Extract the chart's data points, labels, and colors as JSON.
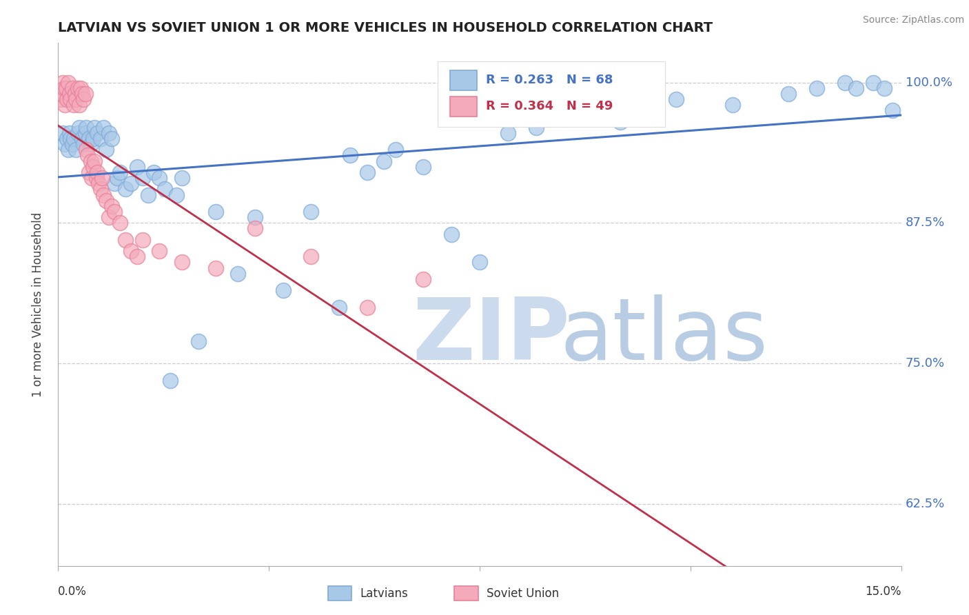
{
  "title": "LATVIAN VS SOVIET UNION 1 OR MORE VEHICLES IN HOUSEHOLD CORRELATION CHART",
  "source": "Source: ZipAtlas.com",
  "ylabel": "1 or more Vehicles in Household",
  "yticks": [
    62.5,
    75.0,
    87.5,
    100.0
  ],
  "ytick_labels": [
    "62.5%",
    "75.0%",
    "87.5%",
    "100.0%"
  ],
  "xmin": 0.0,
  "xmax": 15.0,
  "ymin": 57.0,
  "ymax": 103.5,
  "legend_latvians": "Latvians",
  "legend_soviet": "Soviet Union",
  "R_latvians": "R = 0.263",
  "N_latvians": "N = 68",
  "R_soviet": "R = 0.364",
  "N_soviet": "N = 49",
  "latvians_color": "#a8c8e8",
  "soviet_color": "#f4aabb",
  "latvians_edge": "#80aad8",
  "soviet_edge": "#e8809a",
  "trend_latvians_color": "#4472c4",
  "trend_soviet_color": "#c0304a",
  "watermark_zip_color": "#ccdaee",
  "watermark_atlas_color": "#b8cce4",
  "ytick_color": "#4472c4",
  "latvians_x": [
    0.08,
    0.12,
    0.15,
    0.18,
    0.2,
    0.22,
    0.25,
    0.28,
    0.32,
    0.35,
    0.38,
    0.42,
    0.45,
    0.48,
    0.5,
    0.55,
    0.58,
    0.62,
    0.65,
    0.7,
    0.75,
    0.8,
    0.85,
    0.9,
    0.95,
    1.0,
    1.05,
    1.1,
    1.2,
    1.3,
    1.4,
    1.5,
    1.6,
    1.7,
    1.8,
    1.9,
    2.0,
    2.1,
    2.2,
    2.5,
    2.8,
    3.2,
    3.5,
    4.0,
    4.5,
    5.0,
    5.2,
    5.5,
    5.8,
    6.0,
    6.5,
    7.0,
    7.5,
    8.0,
    8.5,
    9.0,
    9.5,
    10.0,
    10.5,
    11.0,
    12.0,
    13.0,
    13.5,
    14.0,
    14.2,
    14.5,
    14.7,
    14.85
  ],
  "latvians_y": [
    95.5,
    94.5,
    95.0,
    94.0,
    95.5,
    95.0,
    94.5,
    95.0,
    94.0,
    95.5,
    96.0,
    95.0,
    94.5,
    95.5,
    96.0,
    95.0,
    94.5,
    95.0,
    96.0,
    95.5,
    95.0,
    96.0,
    94.0,
    95.5,
    95.0,
    91.0,
    91.5,
    92.0,
    90.5,
    91.0,
    92.5,
    91.5,
    90.0,
    92.0,
    91.5,
    90.5,
    73.5,
    90.0,
    91.5,
    77.0,
    88.5,
    83.0,
    88.0,
    81.5,
    88.5,
    80.0,
    93.5,
    92.0,
    93.0,
    94.0,
    92.5,
    86.5,
    84.0,
    95.5,
    96.0,
    97.0,
    97.5,
    96.5,
    98.0,
    98.5,
    98.0,
    99.0,
    99.5,
    100.0,
    99.5,
    100.0,
    99.5,
    97.5
  ],
  "soviet_x": [
    0.04,
    0.06,
    0.08,
    0.1,
    0.12,
    0.14,
    0.16,
    0.18,
    0.2,
    0.22,
    0.25,
    0.28,
    0.3,
    0.32,
    0.35,
    0.38,
    0.4,
    0.42,
    0.45,
    0.48,
    0.5,
    0.52,
    0.55,
    0.58,
    0.6,
    0.62,
    0.65,
    0.68,
    0.7,
    0.72,
    0.75,
    0.78,
    0.8,
    0.85,
    0.9,
    0.95,
    1.0,
    1.1,
    1.2,
    1.3,
    1.4,
    1.5,
    1.8,
    2.2,
    2.8,
    3.5,
    4.5,
    5.5,
    6.5
  ],
  "soviet_y": [
    98.5,
    99.0,
    100.0,
    99.5,
    98.0,
    99.5,
    98.5,
    100.0,
    99.0,
    98.5,
    99.5,
    98.0,
    99.0,
    98.5,
    99.5,
    98.0,
    99.5,
    99.0,
    98.5,
    99.0,
    94.0,
    93.5,
    92.0,
    93.0,
    91.5,
    92.5,
    93.0,
    91.5,
    92.0,
    91.0,
    90.5,
    91.5,
    90.0,
    89.5,
    88.0,
    89.0,
    88.5,
    87.5,
    86.0,
    85.0,
    84.5,
    86.0,
    85.0,
    84.0,
    83.5,
    87.0,
    84.5,
    80.0,
    82.5
  ]
}
